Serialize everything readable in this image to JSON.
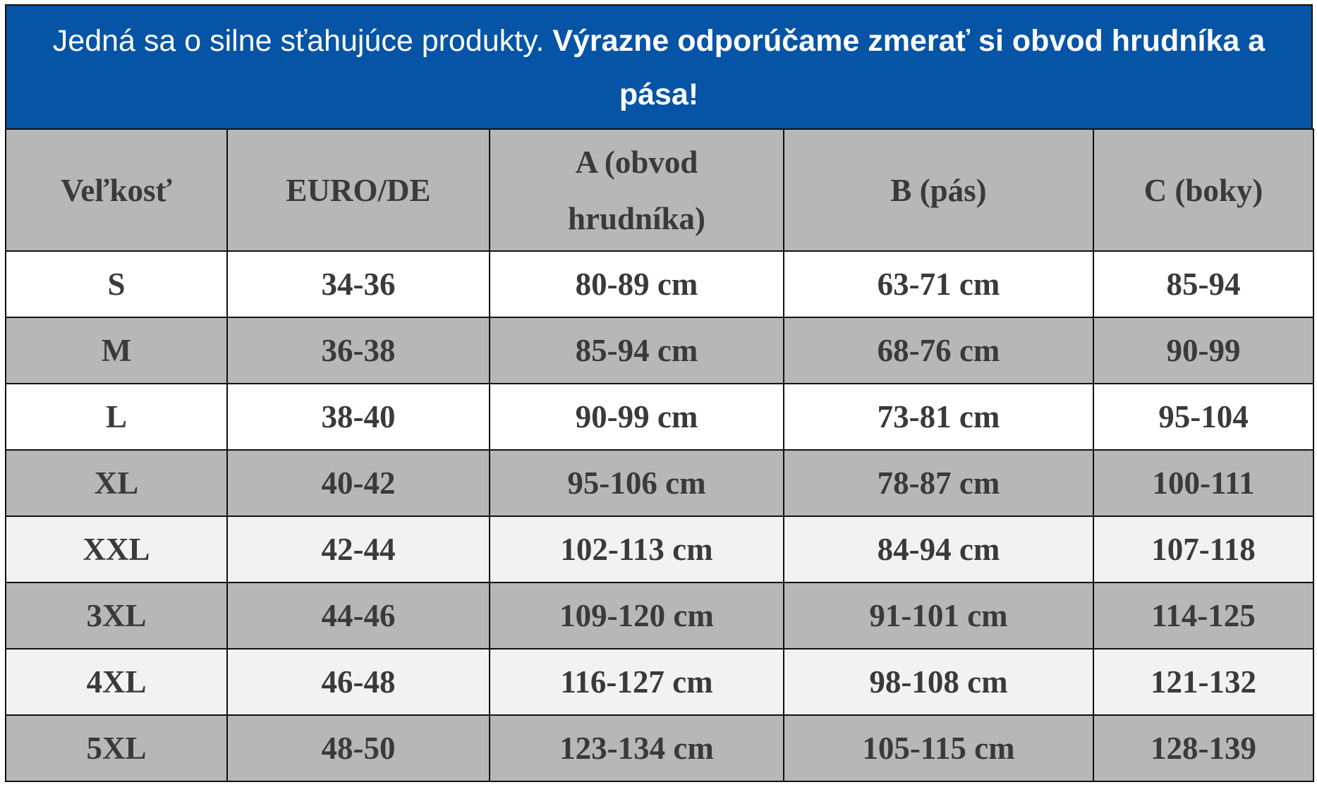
{
  "banner": {
    "text": "Jedná sa o silne sťahujúce produkty.",
    "emphasis": "Výrazne odporúčame zmerať si obvod hrudníka a pása!"
  },
  "table": {
    "header": [
      "Veľkosť",
      "EURO/DE",
      "A (obvod hrudníka)",
      "B (pás)",
      "C (boky)"
    ],
    "rows": [
      [
        "S",
        "34-36",
        "80-89 cm",
        "63-71 cm",
        "85-94"
      ],
      [
        "M",
        "36-38",
        "85-94 cm",
        "68-76 cm",
        "90-99"
      ],
      [
        "L",
        "38-40",
        "90-99 cm",
        "73-81 cm",
        "95-104"
      ],
      [
        "XL",
        "40-42",
        "95-106 cm",
        "78-87 cm",
        "100-111"
      ],
      [
        "XXL",
        "42-44",
        "102-113 cm",
        "84-94 cm",
        "107-118"
      ],
      [
        "3XL",
        "44-46",
        "109-120 cm",
        "91-101 cm",
        "114-125"
      ],
      [
        "4XL",
        "46-48",
        "116-127 cm",
        "98-108 cm",
        "121-132"
      ],
      [
        "5XL",
        "48-50",
        "123-134 cm",
        "105-115 cm",
        "128-139"
      ]
    ]
  }
}
